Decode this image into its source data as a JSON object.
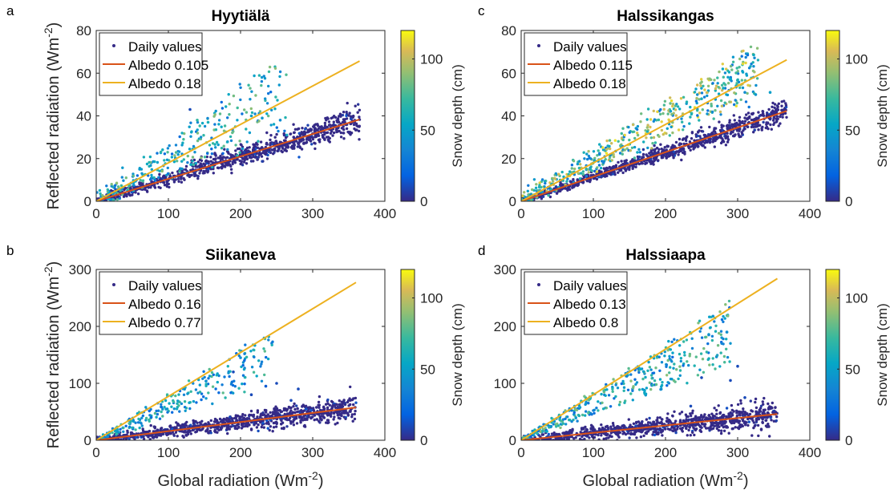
{
  "figure": {
    "xlabel": "Global radiation (Wm",
    "xlabel_sup": "-2",
    "xlabel_end": ")",
    "ylabel": "Reflected radiation (Wm",
    "ylabel_sup": "-2",
    "ylabel_end": ")",
    "colorbar_label": "Snow depth (cm)",
    "colorbar_ticks": [
      "0",
      "50",
      "100"
    ],
    "colorbar_range": [
      0,
      120
    ]
  },
  "chart_data": [
    {
      "type": "scatter",
      "letter": "a",
      "title": "Hyytiälä",
      "xlim": [
        0,
        400
      ],
      "ylim": [
        0,
        80
      ],
      "xticks": [
        0,
        100,
        200,
        300,
        400
      ],
      "yticks": [
        0,
        20,
        40,
        60,
        80
      ],
      "show_xlabel": false,
      "show_ylabel": true,
      "legend": [
        "Daily values",
        "Albedo 0.105",
        "Albedo 0.18"
      ],
      "lines": [
        {
          "name": "Albedo 0.105",
          "slope": 0.105,
          "x": [
            0,
            365
          ],
          "color": "#D95319"
        },
        {
          "name": "Albedo 0.18",
          "slope": 0.18,
          "x": [
            0,
            365
          ],
          "color": "#EDB120"
        }
      ],
      "low_cluster": {
        "xmax": 365,
        "slope": 0.105,
        "spread": 2.5,
        "count": 900
      },
      "snow_cluster": {
        "xmax": 265,
        "slope_min": 0.12,
        "slope_max": 0.27,
        "snow_min": 20,
        "snow_max": 90,
        "count": 300
      },
      "outliers": [
        [
          140,
          38,
          70
        ],
        [
          155,
          37,
          60
        ],
        [
          215,
          40,
          50
        ],
        [
          230,
          39,
          45
        ],
        [
          255,
          38,
          40
        ],
        [
          130,
          43,
          10
        ]
      ]
    },
    {
      "type": "scatter",
      "letter": "c",
      "title": "Halssikangas",
      "xlim": [
        0,
        400
      ],
      "ylim": [
        0,
        80
      ],
      "xticks": [
        0,
        100,
        200,
        300,
        400
      ],
      "yticks": [
        0,
        20,
        40,
        60,
        80
      ],
      "show_xlabel": false,
      "show_ylabel": false,
      "legend": [
        "Daily values",
        "Albedo 0.115",
        "Albedo 0.18"
      ],
      "lines": [
        {
          "name": "Albedo 0.115",
          "slope": 0.115,
          "x": [
            0,
            368
          ],
          "color": "#D95319"
        },
        {
          "name": "Albedo 0.18",
          "slope": 0.18,
          "x": [
            0,
            368
          ],
          "color": "#EDB120"
        }
      ],
      "low_cluster": {
        "xmax": 368,
        "slope": 0.115,
        "spread": 2.0,
        "count": 900
      },
      "snow_cluster": {
        "xmax": 330,
        "slope_min": 0.15,
        "slope_max": 0.23,
        "snow_min": 25,
        "snow_max": 115,
        "count": 500
      },
      "outliers": [
        [
          280,
          53,
          60
        ],
        [
          310,
          51,
          40
        ],
        [
          325,
          50,
          45
        ],
        [
          345,
          51,
          50
        ],
        [
          250,
          48,
          60
        ]
      ]
    },
    {
      "type": "scatter",
      "letter": "b",
      "title": "Siikaneva",
      "xlim": [
        0,
        400
      ],
      "ylim": [
        0,
        300
      ],
      "xticks": [
        0,
        100,
        200,
        300,
        400
      ],
      "yticks": [
        0,
        100,
        200,
        300
      ],
      "show_xlabel": true,
      "show_ylabel": true,
      "legend": [
        "Daily values",
        "Albedo 0.16",
        "Albedo 0.77"
      ],
      "lines": [
        {
          "name": "Albedo 0.16",
          "slope": 0.16,
          "x": [
            0,
            360
          ],
          "color": "#D95319"
        },
        {
          "name": "Albedo 0.77",
          "slope": 0.77,
          "x": [
            0,
            360
          ],
          "color": "#EDB120"
        }
      ],
      "low_cluster": {
        "xmax": 360,
        "slope": 0.16,
        "spread": 8,
        "count": 900
      },
      "snow_cluster": {
        "xmax": 245,
        "slope_min": 0.4,
        "slope_max": 0.8,
        "snow_min": 20,
        "snow_max": 80,
        "count": 250
      },
      "outliers": [
        [
          200,
          145,
          40
        ],
        [
          235,
          95,
          15
        ],
        [
          250,
          100,
          10
        ],
        [
          270,
          70,
          10
        ],
        [
          280,
          90,
          10
        ],
        [
          190,
          120,
          10
        ],
        [
          215,
          80,
          10
        ]
      ]
    },
    {
      "type": "scatter",
      "letter": "d",
      "title": "Halssiaapa",
      "xlim": [
        0,
        400
      ],
      "ylim": [
        0,
        300
      ],
      "xticks": [
        0,
        100,
        200,
        300,
        400
      ],
      "yticks": [
        0,
        100,
        200,
        300
      ],
      "show_xlabel": true,
      "show_ylabel": false,
      "legend": [
        "Daily values",
        "Albedo 0.13",
        "Albedo 0.8"
      ],
      "lines": [
        {
          "name": "Albedo 0.13",
          "slope": 0.13,
          "x": [
            0,
            355
          ],
          "color": "#D95319"
        },
        {
          "name": "Albedo 0.8",
          "slope": 0.8,
          "x": [
            0,
            355
          ],
          "color": "#EDB120"
        }
      ],
      "low_cluster": {
        "xmax": 355,
        "slope": 0.13,
        "spread": 9,
        "count": 900
      },
      "snow_cluster": {
        "xmax": 290,
        "slope_min": 0.45,
        "slope_max": 0.85,
        "snow_min": 20,
        "snow_max": 90,
        "count": 400
      },
      "outliers": [
        [
          285,
          190,
          40
        ],
        [
          260,
          185,
          40
        ],
        [
          290,
          105,
          10
        ],
        [
          300,
          130,
          10
        ],
        [
          250,
          110,
          10
        ],
        [
          310,
          75,
          10
        ],
        [
          235,
          60,
          10
        ]
      ]
    }
  ]
}
